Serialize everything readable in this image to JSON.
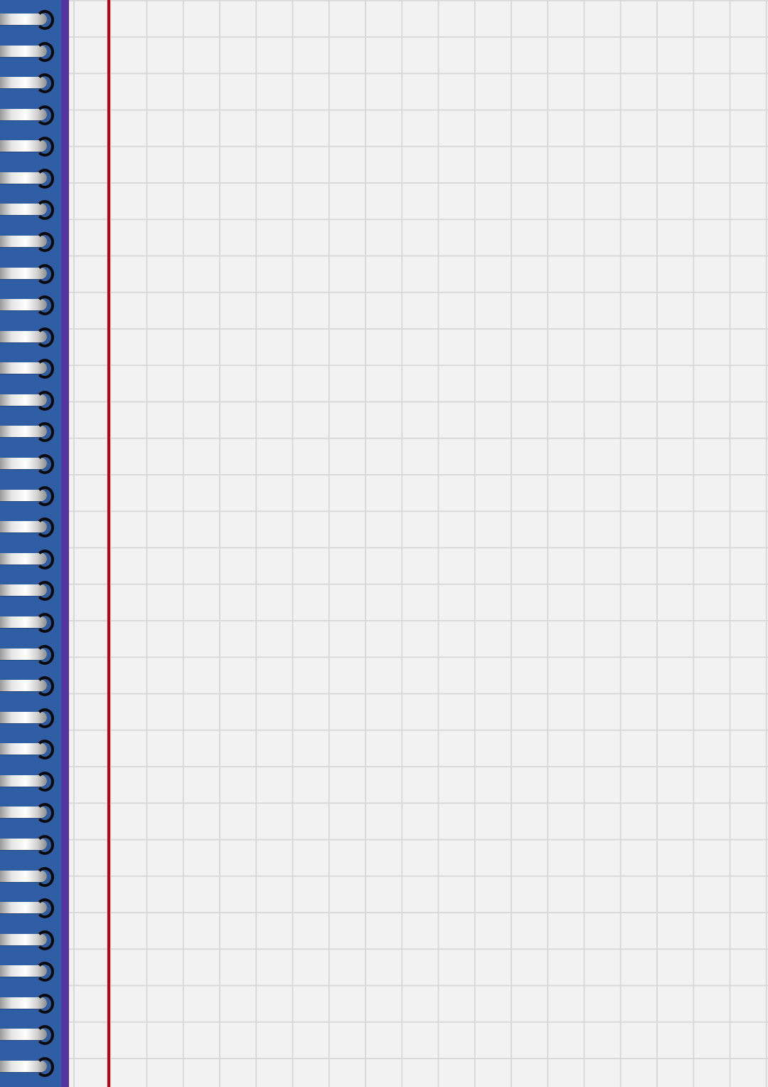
{
  "page": {
    "kind": "blank spiral notebook page, graph ruled",
    "spine_color": "#2f5ea4",
    "spine_edge_color": "#5436a0",
    "paper_color": "#f2f2f2",
    "grid_line_color": "#d9d9d9",
    "margin_line_color": "#c0000c",
    "ring_count": 34,
    "ring_icon": "spiral-ring-icon"
  }
}
